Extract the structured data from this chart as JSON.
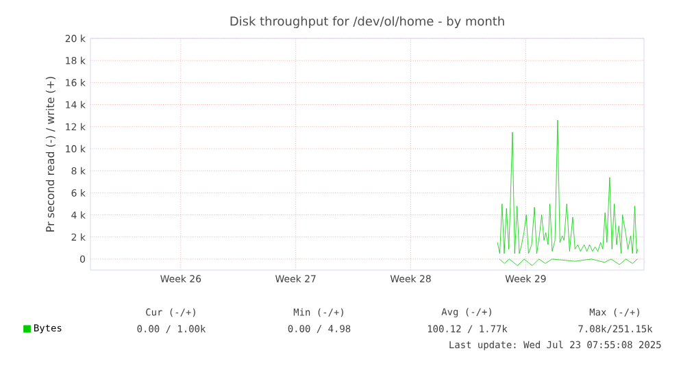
{
  "chart_data": {
    "type": "line",
    "title": "Disk throughput for /dev/ol/home - by month",
    "ylabel": "Pr second read (-) / write (+)",
    "xlim": [
      "2025-06-20T00:00",
      "2025-07-23T16:48"
    ],
    "ylim": [
      -1000,
      20000
    ],
    "xticks": [
      {
        "value": "2025-06-25T12:00",
        "label": "Week 26"
      },
      {
        "value": "2025-07-02T12:00",
        "label": "Week 27"
      },
      {
        "value": "2025-07-09T12:00",
        "label": "Week 28"
      },
      {
        "value": "2025-07-16T12:00",
        "label": "Week 29"
      }
    ],
    "yticks": [
      {
        "value": 0,
        "label": "0"
      },
      {
        "value": 2000,
        "label": "2 k"
      },
      {
        "value": 4000,
        "label": "4 k"
      },
      {
        "value": 6000,
        "label": "6 k"
      },
      {
        "value": 8000,
        "label": "8 k"
      },
      {
        "value": 10000,
        "label": "10 k"
      },
      {
        "value": 12000,
        "label": "12 k"
      },
      {
        "value": 14000,
        "label": "14 k"
      },
      {
        "value": 16000,
        "label": "16 k"
      },
      {
        "value": 18000,
        "label": "18 k"
      },
      {
        "value": 20000,
        "label": "20 k"
      }
    ],
    "grid": true,
    "legend": "bottom left",
    "marker": "none",
    "line_style": "solid",
    "series": [
      {
        "name": "Bytes",
        "color": "#00cc00",
        "x": [
          "2025-07-14T18:43",
          "2025-07-14T22:05",
          "2025-07-15T01:26",
          "2025-07-15T04:34",
          "2025-07-15T07:55",
          "2025-07-15T11:17",
          "2025-07-15T13:26",
          "2025-07-15T16:34",
          "2025-07-15T19:55",
          "2025-07-15T23:17",
          "2025-07-16T02:38",
          "2025-07-16T06:00",
          "2025-07-16T09:22",
          "2025-07-16T12:43",
          "2025-07-16T16:05",
          "2025-07-16T20:38",
          "2025-07-17T00:43",
          "2025-07-17T04:05",
          "2025-07-17T07:55",
          "2025-07-17T11:17",
          "2025-07-17T14:38",
          "2025-07-17T17:17",
          "2025-07-17T20:38",
          "2025-07-17T23:17",
          "2025-07-18T02:38",
          "2025-07-18T06:43",
          "2025-07-18T10:34",
          "2025-07-18T13:55",
          "2025-07-18T17:17",
          "2025-07-18T19:55",
          "2025-07-19T00:00",
          "2025-07-19T04:05",
          "2025-07-19T08:38",
          "2025-07-19T12:00",
          "2025-07-19T16:05",
          "2025-07-19T19:55",
          "2025-07-20T01:26",
          "2025-07-20T05:17",
          "2025-07-20T09:22",
          "2025-07-20T13:26",
          "2025-07-20T17:17",
          "2025-07-20T21:22",
          "2025-07-21T01:26",
          "2025-07-21T04:34",
          "2025-07-21T07:55",
          "2025-07-21T10:34",
          "2025-07-21T14:38",
          "2025-07-21T18:00",
          "2025-07-21T21:22",
          "2025-07-22T00:43",
          "2025-07-22T04:05",
          "2025-07-22T07:26",
          "2025-07-22T09:22",
          "2025-07-22T13:55",
          "2025-07-22T17:17",
          "2025-07-22T21:22",
          "2025-07-23T00:00",
          "2025-07-23T03:22",
          "2025-07-23T06:00",
          "2025-07-23T07:26"
        ],
        "values": [
          1500,
          500,
          5000,
          500,
          4600,
          900,
          4800,
          11500,
          500,
          4800,
          500,
          1300,
          2400,
          4000,
          500,
          1300,
          4700,
          500,
          2100,
          4000,
          1700,
          2400,
          1300,
          5000,
          700,
          1700,
          12600,
          1500,
          2100,
          1700,
          5000,
          700,
          3800,
          900,
          1300,
          700,
          1300,
          700,
          1300,
          700,
          1100,
          700,
          1500,
          900,
          4200,
          1500,
          7400,
          900,
          5000,
          1300,
          3000,
          500,
          4000,
          2400,
          900,
          2100,
          500,
          4800,
          500,
          900
        ]
      },
      {
        "color": "#00cc00",
        "x": [
          "2025-07-14T21:36",
          "2025-07-15T04:48",
          "2025-07-15T12:00",
          "2025-07-16T00:00",
          "2025-07-16T09:36",
          "2025-07-16T21:36",
          "2025-07-17T07:12",
          "2025-07-17T16:48",
          "2025-07-18T02:24",
          "2025-07-19T12:00",
          "2025-07-20T12:00",
          "2025-07-21T07:12",
          "2025-07-21T16:48",
          "2025-07-22T04:48",
          "2025-07-22T14:24",
          "2025-07-23T00:00",
          "2025-07-23T07:12"
        ],
        "values": [
          0,
          -400,
          0,
          -600,
          0,
          -600,
          0,
          -400,
          0,
          -200,
          0,
          -300,
          0,
          -500,
          0,
          -400,
          0
        ]
      }
    ],
    "annotations": [
      "Cur (-/+)",
      "Min (-/+)",
      "Avg (-/+)",
      "Max (-/+)",
      "0.00 /  1.00k",
      "0.00 /  4.98",
      "100.12 /  1.77k",
      "7.08k/251.15k",
      "Last update: Wed Jul 23 07:55:08 2025"
    ]
  }
}
